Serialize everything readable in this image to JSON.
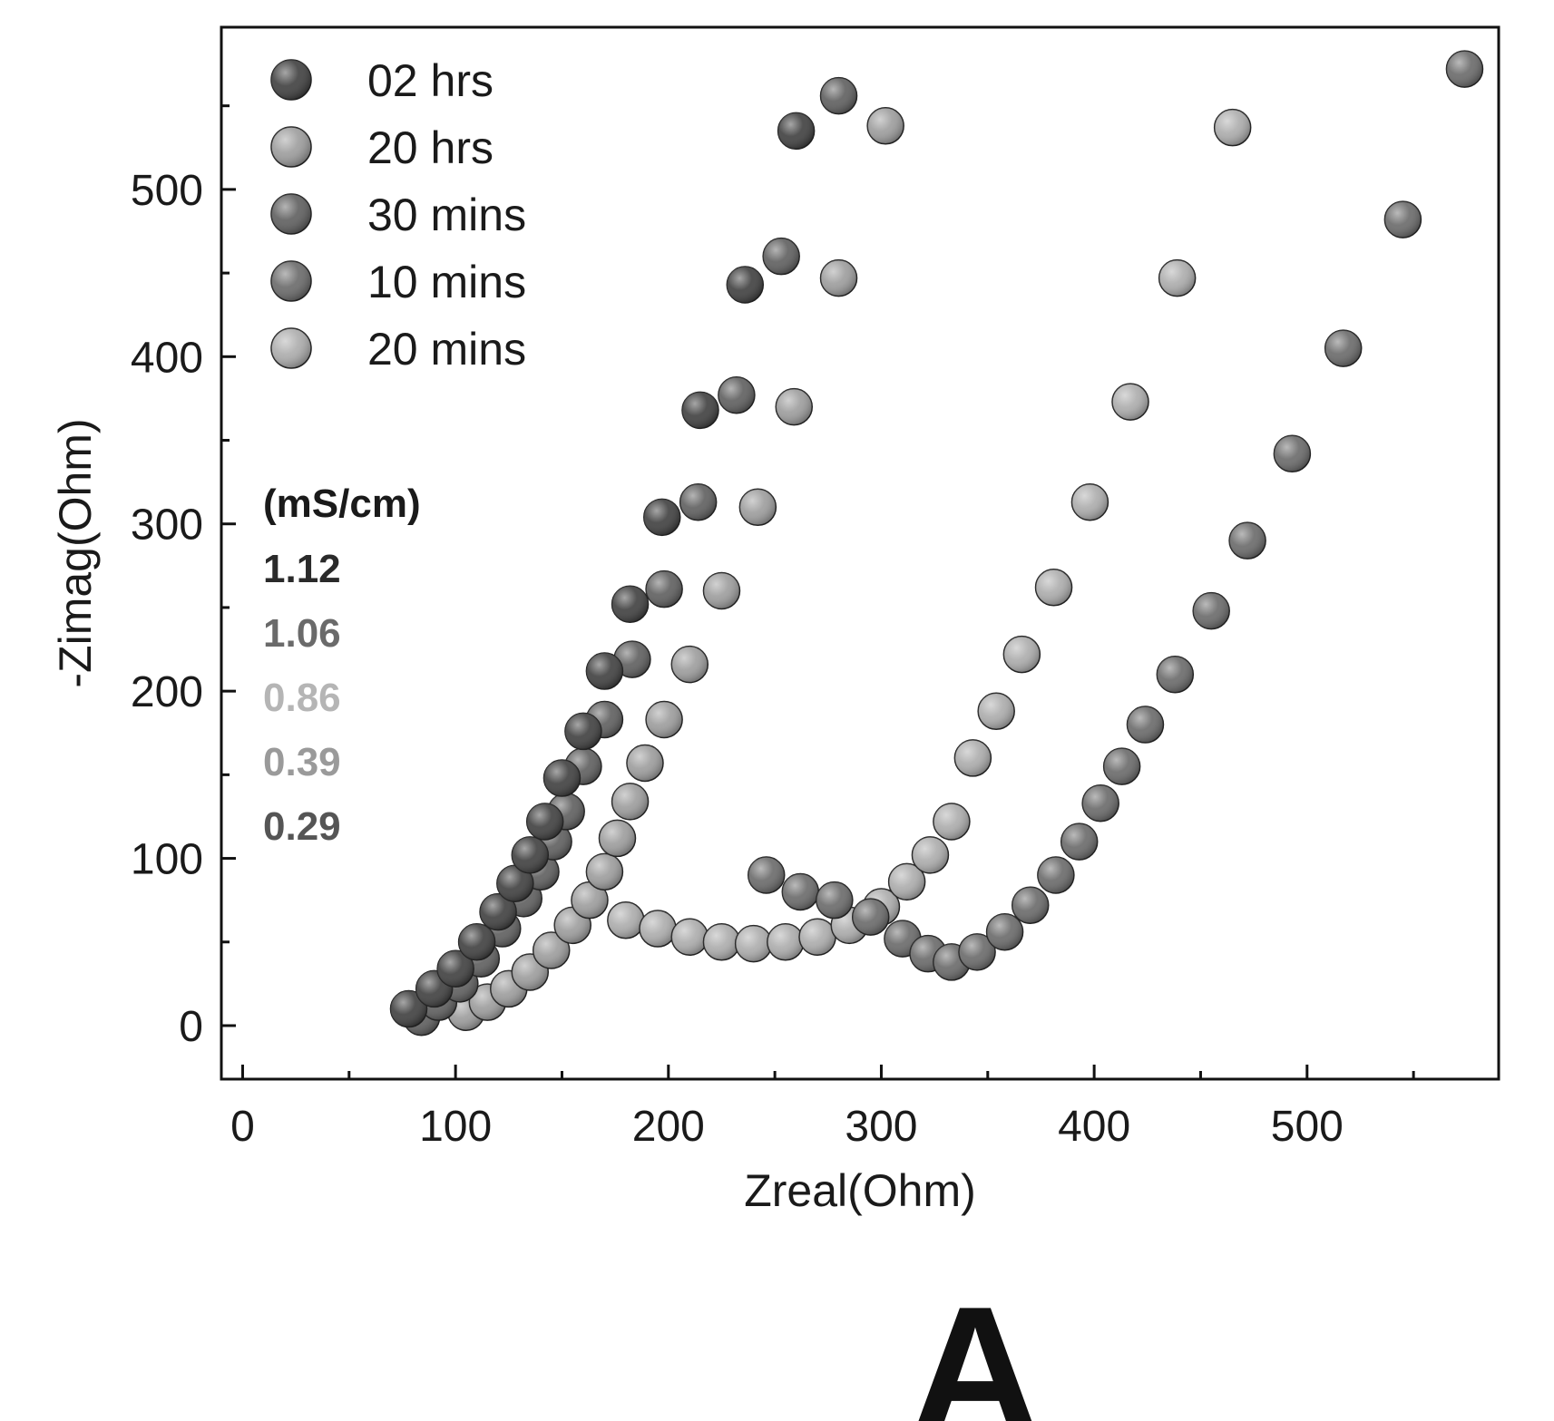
{
  "chart_data": {
    "type": "scatter",
    "title": "",
    "xlabel": "Zreal(Ohm)",
    "ylabel": "-Zimag(Ohm)",
    "xlim": [
      -10,
      590
    ],
    "ylim": [
      -32,
      597
    ],
    "xticks": [
      0,
      100,
      200,
      300,
      400,
      500
    ],
    "yticks": [
      0,
      100,
      200,
      300,
      400,
      500
    ],
    "legend_position": "top-left",
    "series": [
      {
        "name": "02 hrs",
        "color": "#3a3a3a",
        "conductivity": "1.12",
        "x": [
          78,
          90,
          100,
          110,
          120,
          128,
          135,
          142,
          150,
          160,
          170,
          182,
          197,
          215,
          236,
          260
        ],
        "y": [
          10,
          22,
          34,
          50,
          68,
          85,
          102,
          122,
          148,
          176,
          212,
          252,
          304,
          368,
          443,
          535
        ]
      },
      {
        "name": "20 hrs",
        "color": "#9a9a9a",
        "conductivity": "1.06",
        "x": [
          105,
          115,
          125,
          135,
          145,
          155,
          163,
          170,
          176,
          182,
          189,
          198,
          210,
          225,
          242,
          259,
          280,
          302
        ],
        "y": [
          8,
          14,
          22,
          32,
          45,
          60,
          75,
          92,
          112,
          134,
          157,
          183,
          216,
          260,
          310,
          370,
          447,
          538
        ]
      },
      {
        "name": "30 mins",
        "color": "#5a5a5a",
        "conductivity": "0.86",
        "x": [
          84,
          92,
          102,
          112,
          122,
          132,
          140,
          146,
          152,
          160,
          170,
          183,
          198,
          214,
          232,
          253,
          280
        ],
        "y": [
          5,
          14,
          25,
          40,
          58,
          76,
          92,
          110,
          128,
          155,
          183,
          219,
          261,
          313,
          377,
          460,
          556
        ]
      },
      {
        "name": "10 mins",
        "color": "#666666",
        "conductivity": "0.39",
        "x": [
          246,
          262,
          278,
          295,
          310,
          322,
          333,
          345,
          358,
          370,
          382,
          393,
          403,
          413,
          424,
          438,
          455,
          472,
          493,
          517,
          545,
          574
        ],
        "y": [
          90,
          80,
          75,
          65,
          52,
          43,
          38,
          44,
          56,
          72,
          90,
          110,
          133,
          155,
          180,
          210,
          248,
          290,
          342,
          405,
          482,
          572
        ]
      },
      {
        "name": "20 mins",
        "color": "#aaaaaa",
        "conductivity": "0.29",
        "x": [
          180,
          195,
          210,
          225,
          240,
          255,
          270,
          285,
          300,
          312,
          323,
          333,
          343,
          354,
          366,
          381,
          398,
          417,
          439,
          465
        ],
        "y": [
          63,
          58,
          53,
          50,
          49,
          50,
          53,
          60,
          71,
          86,
          102,
          122,
          160,
          188,
          222,
          262,
          313,
          373,
          447,
          537
        ]
      }
    ],
    "annotation_unit": "(mS/cm)"
  },
  "figure": {
    "panel_label": "A"
  }
}
